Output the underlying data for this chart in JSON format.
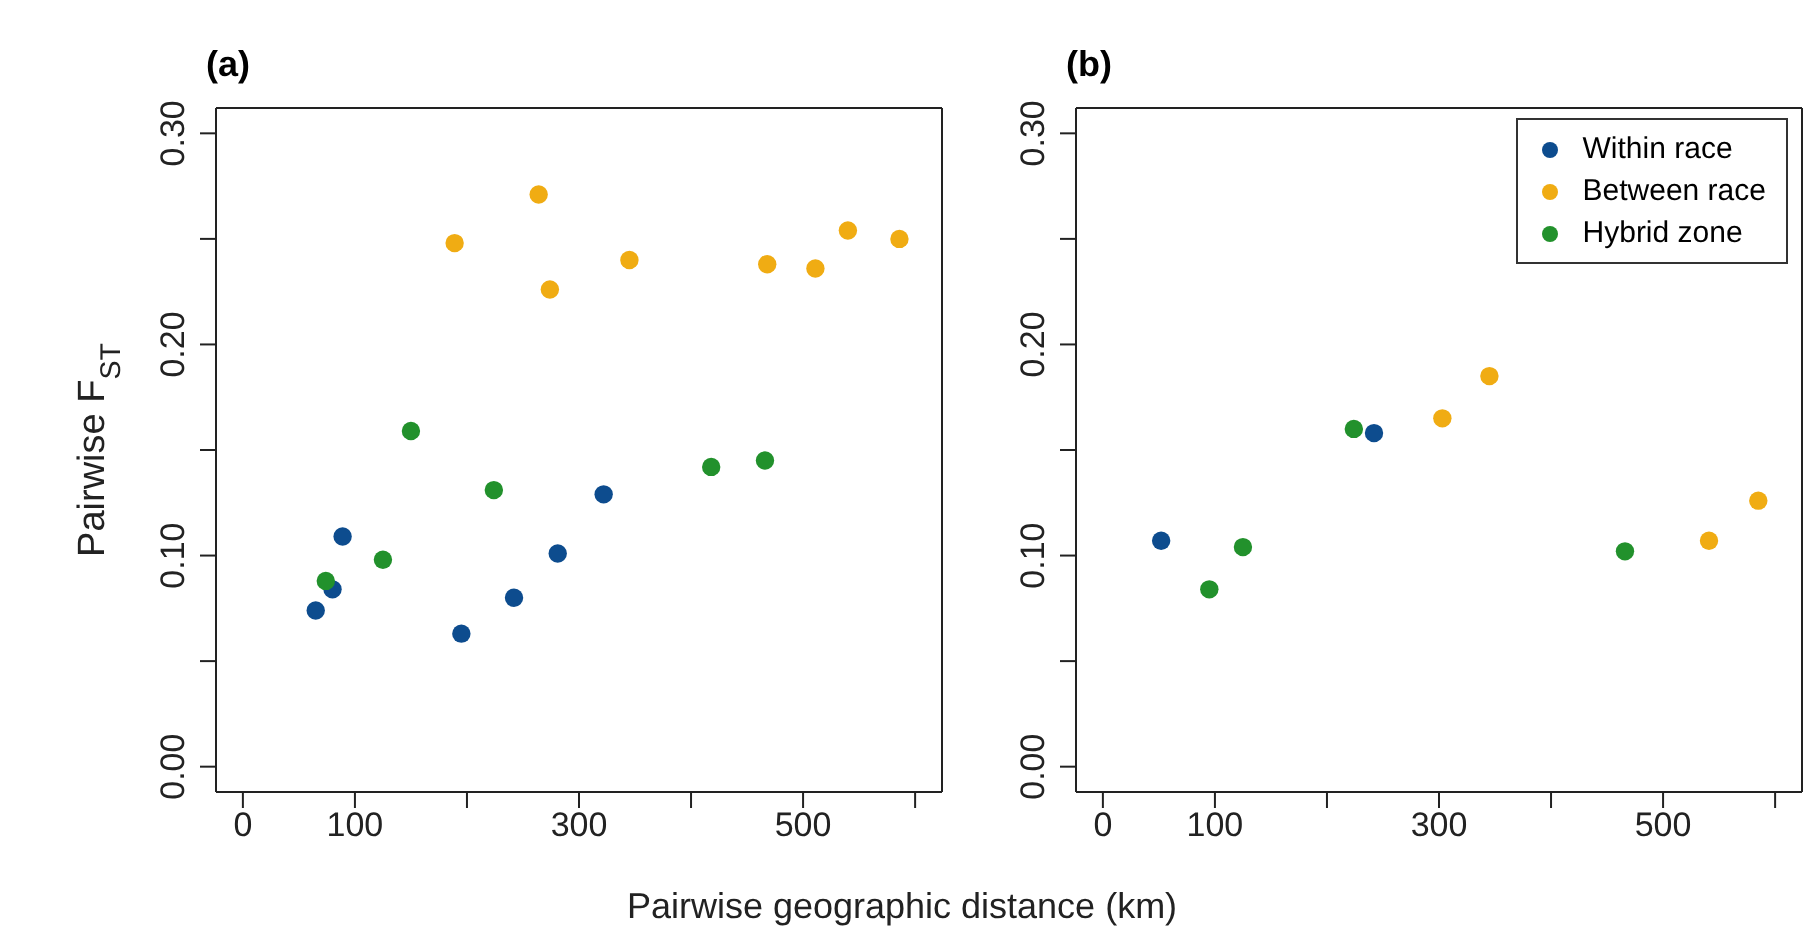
{
  "chart_data": [
    {
      "type": "scatter",
      "title": "(a)",
      "ylabel": "Pairwise F$_{ST}$",
      "xlabel": "Pairwise geographic distance (km)",
      "xlim": [
        -24,
        624
      ],
      "ylim": [
        -0.012,
        0.312
      ],
      "xticks": [
        0,
        100,
        {
          "value": 200,
          "label": null
        },
        300,
        {
          "value": 400,
          "label": null
        },
        500,
        {
          "value": 600,
          "label": null
        }
      ],
      "yticks": [
        {
          "value": 0,
          "label": "0.00"
        },
        {
          "value": 0.05,
          "label": null
        },
        {
          "value": 0.1,
          "label": "0.10"
        },
        {
          "value": 0.15,
          "label": null
        },
        {
          "value": 0.2,
          "label": "0.20"
        },
        {
          "value": 0.25,
          "label": null
        },
        {
          "value": 0.3,
          "label": "0.30"
        }
      ],
      "marker": "circle",
      "legend": false,
      "series": [
        {
          "color": "#0d4c8e",
          "x": [
            65,
            80,
            89,
            195,
            242,
            281,
            322
          ],
          "values": [
            0.074,
            0.084,
            0.109,
            0.063,
            0.08,
            0.101,
            0.129
          ]
        },
        {
          "color": "#f0ac13",
          "x": [
            189,
            264,
            274,
            345,
            468,
            511,
            540,
            586
          ],
          "values": [
            0.248,
            0.271,
            0.226,
            0.24,
            0.238,
            0.236,
            0.254,
            0.25
          ]
        },
        {
          "color": "#22912c",
          "x": [
            74,
            125,
            150,
            224,
            418,
            466
          ],
          "values": [
            0.088,
            0.098,
            0.159,
            0.131,
            0.142,
            0.145
          ]
        }
      ]
    },
    {
      "type": "scatter",
      "title": "(b)",
      "xlim": [
        -24,
        624
      ],
      "ylim": [
        -0.012,
        0.312
      ],
      "xticks": [
        0,
        100,
        {
          "value": 200,
          "label": null
        },
        300,
        {
          "value": 400,
          "label": null
        },
        500,
        {
          "value": 600,
          "label": null
        }
      ],
      "yticks": [
        {
          "value": 0,
          "label": "0.00"
        },
        {
          "value": 0.05,
          "label": null
        },
        {
          "value": 0.1,
          "label": "0.10"
        },
        {
          "value": 0.15,
          "label": null
        },
        {
          "value": 0.2,
          "label": "0.20"
        },
        {
          "value": 0.25,
          "label": null
        },
        {
          "value": 0.3,
          "label": "0.30"
        }
      ],
      "marker": "circle",
      "legend": "top right",
      "series": [
        {
          "name": "Within race",
          "color": "#0d4c8e",
          "x": [
            52,
            242
          ],
          "values": [
            0.107,
            0.158
          ]
        },
        {
          "name": "Between race",
          "color": "#f0ac13",
          "x": [
            303,
            345,
            541,
            585
          ],
          "values": [
            0.165,
            0.185,
            0.107,
            0.126
          ]
        },
        {
          "name": "Hybrid zone",
          "color": "#22912c",
          "x": [
            95,
            125,
            224,
            466
          ],
          "values": [
            0.084,
            0.104,
            0.16,
            0.102
          ]
        }
      ]
    }
  ]
}
